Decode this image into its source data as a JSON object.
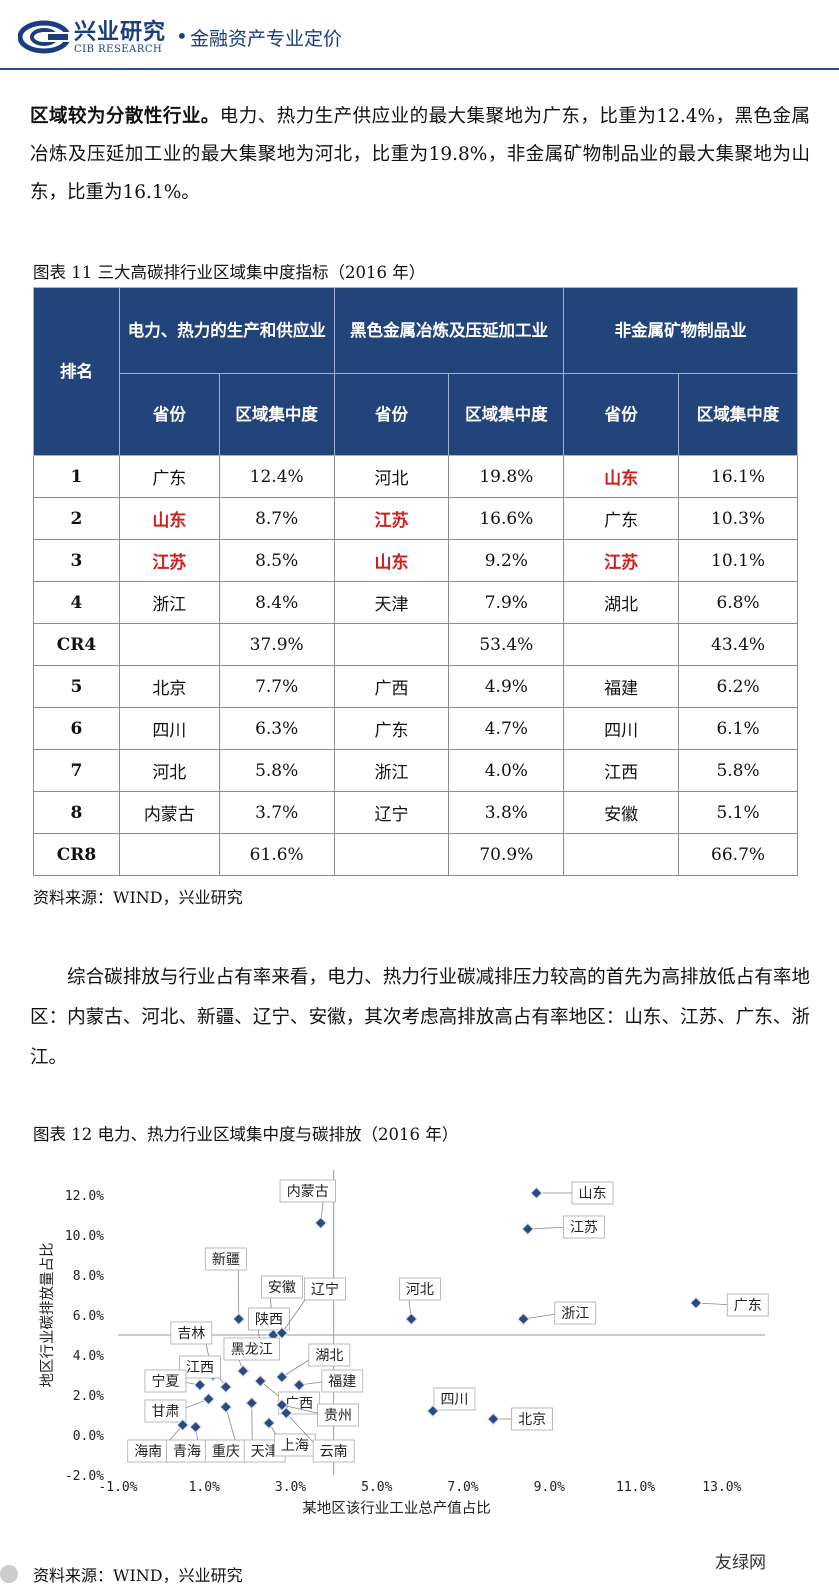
{
  "header": {
    "brand_cn": "兴业研究",
    "brand_en": "CIB RESEARCH",
    "dot": "•",
    "tagline": "金融资产专业定价"
  },
  "para1": {
    "bold": "区域较为分散性行业。",
    "text": "电力、热力生产供应业的最大集聚地为广东，比重为12.4%，黑色金属冶炼及压延加工业的最大集聚地为河北，比重为19.8%，非金属矿物制品业的最大集聚地为山东，比重为16.1%。"
  },
  "table": {
    "caption": "图表 11  三大高碳排行业区域集中度指标（2016 年）",
    "rank_header": "排名",
    "groups": [
      "电力、热力的生产和供应业",
      "黑色金属冶炼及压延加工业",
      "非金属矿物制品业"
    ],
    "sub_prov": "省份",
    "sub_conc": "区域集中度",
    "rows": [
      {
        "rank": "1",
        "c": [
          [
            "广东",
            0
          ],
          "12.4%",
          [
            "河北",
            0
          ],
          "19.8%",
          [
            "山东",
            1
          ],
          "16.1%"
        ]
      },
      {
        "rank": "2",
        "c": [
          [
            "山东",
            1
          ],
          "8.7%",
          [
            "江苏",
            1
          ],
          "16.6%",
          [
            "广东",
            0
          ],
          "10.3%"
        ]
      },
      {
        "rank": "3",
        "c": [
          [
            "江苏",
            1
          ],
          "8.5%",
          [
            "山东",
            1
          ],
          "9.2%",
          [
            "江苏",
            1
          ],
          "10.1%"
        ]
      },
      {
        "rank": "4",
        "c": [
          [
            "浙江",
            0
          ],
          "8.4%",
          [
            "天津",
            0
          ],
          "7.9%",
          [
            "湖北",
            0
          ],
          "6.8%"
        ]
      },
      {
        "rank": "CR4",
        "c": [
          [
            "",
            0
          ],
          "37.9%",
          [
            "",
            0
          ],
          "53.4%",
          [
            "",
            0
          ],
          "43.4%"
        ]
      },
      {
        "rank": "5",
        "c": [
          [
            "北京",
            0
          ],
          "7.7%",
          [
            "广西",
            0
          ],
          "4.9%",
          [
            "福建",
            0
          ],
          "6.2%"
        ]
      },
      {
        "rank": "6",
        "c": [
          [
            "四川",
            0
          ],
          "6.3%",
          [
            "广东",
            0
          ],
          "4.7%",
          [
            "四川",
            0
          ],
          "6.1%"
        ]
      },
      {
        "rank": "7",
        "c": [
          [
            "河北",
            0
          ],
          "5.8%",
          [
            "浙江",
            0
          ],
          "4.0%",
          [
            "江西",
            0
          ],
          "5.8%"
        ]
      },
      {
        "rank": "8",
        "c": [
          [
            "内蒙古",
            0
          ],
          "3.7%",
          [
            "辽宁",
            0
          ],
          "3.8%",
          [
            "安徽",
            0
          ],
          "5.1%"
        ]
      },
      {
        "rank": "CR8",
        "c": [
          [
            "",
            0
          ],
          "61.6%",
          [
            "",
            0
          ],
          "70.9%",
          [
            "",
            0
          ],
          "66.7%"
        ]
      }
    ],
    "highlight_color": "#cc1f1f",
    "header_color": "#23447a",
    "source": "资料来源：WIND，兴业研究"
  },
  "para2": {
    "text": "综合碳排放与行业占有率来看，电力、热力行业碳减排压力较高的首先为高排放低占有率地区：内蒙古、河北、新疆、辽宁、安徽，其次考虑高排放高占有率地区：山东、江苏、广东、浙江。"
  },
  "chart_caption": "图表 12 电力、热力行业区域集中度与碳排放（2016 年）",
  "chart_data": {
    "type": "scatter",
    "xlabel": "某地区该行业工业总产值占比",
    "ylabel": "地区行业碳排放量占比",
    "xlim": [
      -1.0,
      14.0
    ],
    "ylim": [
      -2.0,
      13.0
    ],
    "xticks": [
      -1.0,
      1.0,
      3.0,
      5.0,
      7.0,
      9.0,
      11.0,
      13.0
    ],
    "yticks": [
      -2.0,
      0.0,
      2.0,
      4.0,
      6.0,
      8.0,
      10.0,
      12.0
    ],
    "tick_labels_x": [
      "-1.0%",
      "1.0%",
      "3.0%",
      "5.0%",
      "7.0%",
      "9.0%",
      "11.0%",
      "13.0%"
    ],
    "tick_labels_y": [
      "-2.0%",
      "0.0%",
      "2.0%",
      "4.0%",
      "6.0%",
      "8.0%",
      "10.0%",
      "12.0%"
    ],
    "ref_x": 4.0,
    "ref_y": 5.0,
    "marker_color": "#2c4a80",
    "points": [
      {
        "name": "山东",
        "x": 8.7,
        "y": 12.1,
        "lx": 10.0,
        "ly": 12.1
      },
      {
        "name": "江苏",
        "x": 8.5,
        "y": 10.3,
        "lx": 9.8,
        "ly": 10.4
      },
      {
        "name": "内蒙古",
        "x": 3.7,
        "y": 10.6,
        "lx": 3.4,
        "ly": 12.2
      },
      {
        "name": "新疆",
        "x": 1.8,
        "y": 5.8,
        "lx": 1.5,
        "ly": 8.8
      },
      {
        "name": "安徽",
        "x": 2.6,
        "y": 5.0,
        "lx": 2.8,
        "ly": 7.4
      },
      {
        "name": "陕西",
        "x": 2.3,
        "y": 4.5,
        "lx": 2.5,
        "ly": 5.8
      },
      {
        "name": "辽宁",
        "x": 2.8,
        "y": 5.1,
        "lx": 3.8,
        "ly": 7.3
      },
      {
        "name": "河北",
        "x": 5.8,
        "y": 5.8,
        "lx": 6.0,
        "ly": 7.3
      },
      {
        "name": "浙江",
        "x": 8.4,
        "y": 5.8,
        "lx": 9.6,
        "ly": 6.1
      },
      {
        "name": "广东",
        "x": 12.4,
        "y": 6.6,
        "lx": 13.6,
        "ly": 6.5
      },
      {
        "name": "吉林",
        "x": 1.2,
        "y": 3.0,
        "lx": 0.7,
        "ly": 5.1
      },
      {
        "name": "黑龙江",
        "x": 1.9,
        "y": 3.2,
        "lx": 2.1,
        "ly": 4.3
      },
      {
        "name": "江西",
        "x": 1.5,
        "y": 2.4,
        "lx": 0.9,
        "ly": 3.4
      },
      {
        "name": "宁夏",
        "x": 0.9,
        "y": 2.5,
        "lx": 0.1,
        "ly": 2.7
      },
      {
        "name": "甘肃",
        "x": 1.1,
        "y": 1.8,
        "lx": 0.1,
        "ly": 1.2
      },
      {
        "name": "湖北",
        "x": 2.8,
        "y": 2.9,
        "lx": 3.9,
        "ly": 4.0
      },
      {
        "name": "福建",
        "x": 3.2,
        "y": 2.5,
        "lx": 4.2,
        "ly": 2.7
      },
      {
        "name": "广西",
        "x": 2.3,
        "y": 2.7,
        "lx": 3.2,
        "ly": 1.6
      },
      {
        "name": "贵州",
        "x": 2.8,
        "y": 1.5,
        "lx": 4.1,
        "ly": 1.0
      },
      {
        "name": "海南",
        "x": 0.5,
        "y": 0.5,
        "lx": -0.3,
        "ly": -0.8
      },
      {
        "name": "青海",
        "x": 0.8,
        "y": 0.4,
        "lx": 0.6,
        "ly": -0.8
      },
      {
        "name": "重庆",
        "x": 1.5,
        "y": 1.4,
        "lx": 1.5,
        "ly": -0.8
      },
      {
        "name": "天津",
        "x": 2.1,
        "y": 1.6,
        "lx": 2.4,
        "ly": -0.8
      },
      {
        "name": "上海",
        "x": 2.5,
        "y": 0.6,
        "lx": 3.1,
        "ly": -0.5
      },
      {
        "name": "云南",
        "x": 2.9,
        "y": 1.1,
        "lx": 4.0,
        "ly": -0.8
      },
      {
        "name": "四川",
        "x": 6.3,
        "y": 1.2,
        "lx": 6.8,
        "ly": 1.8
      },
      {
        "name": "北京",
        "x": 7.7,
        "y": 0.8,
        "lx": 8.6,
        "ly": 0.8
      }
    ]
  },
  "chart_source": "资料来源：WIND，兴业研究",
  "watermark": "友绿网"
}
